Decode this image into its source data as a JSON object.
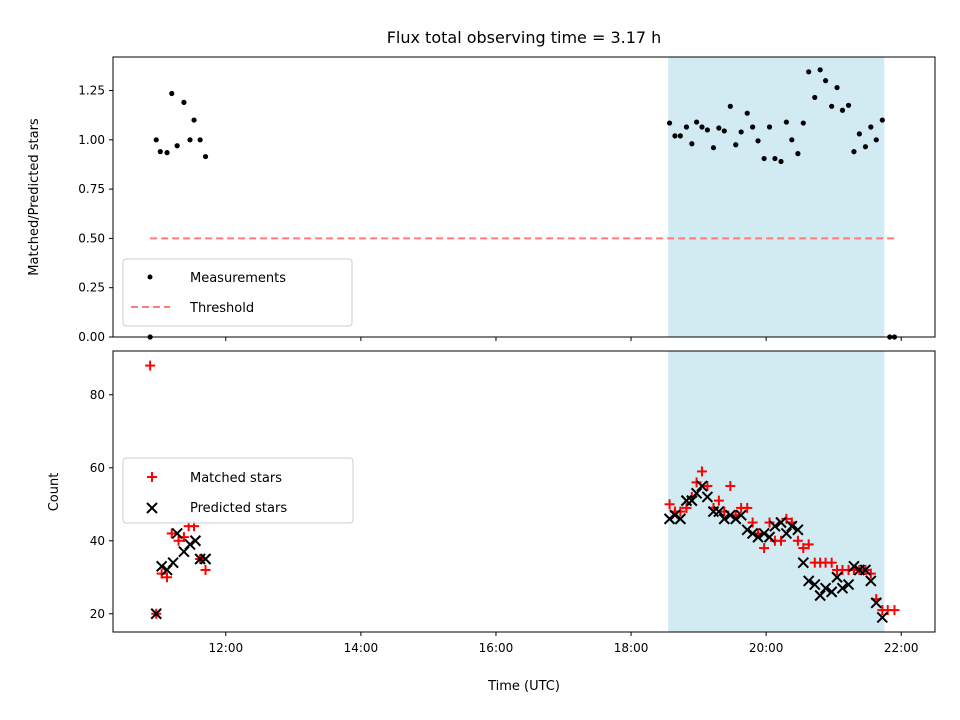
{
  "chart_data": [
    {
      "type": "scatter",
      "title": "Flux total observing time = 3.17 h",
      "xlabel": "",
      "ylabel": "Matched/Predicted stars",
      "xlim_hours": [
        10.33,
        22.5
      ],
      "ylim": [
        0,
        1.42
      ],
      "yticks": [
        0.0,
        0.25,
        0.5,
        0.75,
        1.0,
        1.25
      ],
      "ytick_labels": [
        "0.00",
        "0.25",
        "0.50",
        "0.75",
        "1.00",
        "1.25"
      ],
      "grid": false,
      "legend_placement": "lower-left",
      "shaded_span_hours": [
        18.55,
        21.75
      ],
      "shade_color": "#add8e6",
      "series": [
        {
          "name": "Measurements",
          "marker": "dot",
          "color": "#000000",
          "points": [
            [
              10.88,
              0.0
            ],
            [
              10.97,
              1.0
            ],
            [
              11.03,
              0.94
            ],
            [
              11.13,
              0.935
            ],
            [
              11.2,
              1.235
            ],
            [
              11.28,
              0.97
            ],
            [
              11.38,
              1.19
            ],
            [
              11.47,
              1.0
            ],
            [
              11.53,
              1.1
            ],
            [
              11.62,
              1.0
            ],
            [
              11.7,
              0.915
            ],
            [
              18.57,
              1.085
            ],
            [
              18.65,
              1.02
            ],
            [
              18.73,
              1.02
            ],
            [
              18.82,
              1.065
            ],
            [
              18.9,
              0.98
            ],
            [
              18.97,
              1.09
            ],
            [
              19.05,
              1.065
            ],
            [
              19.13,
              1.05
            ],
            [
              19.22,
              0.96
            ],
            [
              19.3,
              1.06
            ],
            [
              19.38,
              1.045
            ],
            [
              19.47,
              1.17
            ],
            [
              19.55,
              0.975
            ],
            [
              19.63,
              1.04
            ],
            [
              19.72,
              1.135
            ],
            [
              19.8,
              1.065
            ],
            [
              19.88,
              0.995
            ],
            [
              19.97,
              0.905
            ],
            [
              20.05,
              1.065
            ],
            [
              20.13,
              0.905
            ],
            [
              20.22,
              0.89
            ],
            [
              20.3,
              1.09
            ],
            [
              20.38,
              1.0
            ],
            [
              20.47,
              0.93
            ],
            [
              20.55,
              1.085
            ],
            [
              20.63,
              1.345
            ],
            [
              20.72,
              1.215
            ],
            [
              20.8,
              1.355
            ],
            [
              20.88,
              1.3
            ],
            [
              20.97,
              1.17
            ],
            [
              21.05,
              1.265
            ],
            [
              21.13,
              1.15
            ],
            [
              21.22,
              1.175
            ],
            [
              21.3,
              0.94
            ],
            [
              21.38,
              1.03
            ],
            [
              21.47,
              0.965
            ],
            [
              21.55,
              1.065
            ],
            [
              21.63,
              1.0
            ],
            [
              21.72,
              1.1
            ],
            [
              21.83,
              0.0
            ],
            [
              21.9,
              0.0
            ]
          ]
        },
        {
          "name": "Threshold",
          "style": "dashed-line",
          "color": "#ff7b7b",
          "x_range_hours": [
            10.88,
            21.9
          ],
          "y": 0.5
        }
      ]
    },
    {
      "type": "scatter",
      "title": "",
      "xlabel": "Time (UTC)",
      "ylabel": "Count",
      "xlim_hours": [
        10.33,
        22.5
      ],
      "ylim": [
        15,
        92
      ],
      "yticks": [
        20,
        40,
        60,
        80
      ],
      "ytick_labels": [
        "20",
        "40",
        "60",
        "80"
      ],
      "xticks_hours": [
        12,
        14,
        16,
        18,
        20,
        22
      ],
      "xtick_labels": [
        "12:00",
        "14:00",
        "16:00",
        "18:00",
        "20:00",
        "22:00"
      ],
      "grid": false,
      "legend_placement": "center-left",
      "shaded_span_hours": [
        18.55,
        21.75
      ],
      "shade_color": "#add8e6",
      "series": [
        {
          "name": "Matched stars",
          "marker": "plus",
          "color": "#ff0000",
          "points": [
            [
              10.88,
              88
            ],
            [
              10.97,
              20
            ],
            [
              11.05,
              31
            ],
            [
              11.13,
              30
            ],
            [
              11.2,
              42
            ],
            [
              11.3,
              40
            ],
            [
              11.38,
              41
            ],
            [
              11.45,
              44
            ],
            [
              11.53,
              44
            ],
            [
              11.62,
              35
            ],
            [
              11.7,
              32
            ],
            [
              18.57,
              50
            ],
            [
              18.65,
              48
            ],
            [
              18.73,
              48
            ],
            [
              18.82,
              49
            ],
            [
              18.9,
              52
            ],
            [
              18.97,
              56
            ],
            [
              19.05,
              59
            ],
            [
              19.13,
              55
            ],
            [
              19.22,
              49
            ],
            [
              19.3,
              51
            ],
            [
              19.38,
              48
            ],
            [
              19.47,
              55
            ],
            [
              19.55,
              47
            ],
            [
              19.63,
              49
            ],
            [
              19.72,
              49
            ],
            [
              19.8,
              45
            ],
            [
              19.88,
              42
            ],
            [
              19.97,
              38
            ],
            [
              20.05,
              45
            ],
            [
              20.13,
              40
            ],
            [
              20.22,
              40
            ],
            [
              20.3,
              46
            ],
            [
              20.38,
              45
            ],
            [
              20.47,
              40
            ],
            [
              20.55,
              38
            ],
            [
              20.63,
              39
            ],
            [
              20.72,
              34
            ],
            [
              20.8,
              34
            ],
            [
              20.88,
              34
            ],
            [
              20.97,
              34
            ],
            [
              21.05,
              32
            ],
            [
              21.13,
              32
            ],
            [
              21.22,
              32
            ],
            [
              21.3,
              32
            ],
            [
              21.38,
              32
            ],
            [
              21.47,
              32
            ],
            [
              21.55,
              31
            ],
            [
              21.63,
              24
            ],
            [
              21.72,
              21
            ],
            [
              21.8,
              21
            ],
            [
              21.9,
              21
            ]
          ]
        },
        {
          "name": "Predicted stars",
          "marker": "x",
          "color": "#000000",
          "points": [
            [
              10.97,
              20
            ],
            [
              11.05,
              33
            ],
            [
              11.13,
              32
            ],
            [
              11.22,
              34
            ],
            [
              11.28,
              42
            ],
            [
              11.38,
              37
            ],
            [
              11.47,
              39
            ],
            [
              11.55,
              40
            ],
            [
              11.62,
              35
            ],
            [
              11.7,
              35
            ],
            [
              18.57,
              46
            ],
            [
              18.65,
              47
            ],
            [
              18.73,
              46
            ],
            [
              18.82,
              51
            ],
            [
              18.9,
              51
            ],
            [
              18.97,
              53
            ],
            [
              19.05,
              55
            ],
            [
              19.13,
              52
            ],
            [
              19.22,
              48
            ],
            [
              19.3,
              48
            ],
            [
              19.38,
              46
            ],
            [
              19.47,
              47
            ],
            [
              19.55,
              46
            ],
            [
              19.63,
              47
            ],
            [
              19.72,
              43
            ],
            [
              19.8,
              42
            ],
            [
              19.88,
              41
            ],
            [
              19.97,
              42
            ],
            [
              20.05,
              41
            ],
            [
              20.13,
              44
            ],
            [
              20.22,
              45
            ],
            [
              20.3,
              42
            ],
            [
              20.38,
              44
            ],
            [
              20.47,
              43
            ],
            [
              20.55,
              34
            ],
            [
              20.63,
              29
            ],
            [
              20.72,
              28
            ],
            [
              20.8,
              25
            ],
            [
              20.88,
              27
            ],
            [
              20.97,
              26
            ],
            [
              21.05,
              30
            ],
            [
              21.13,
              27
            ],
            [
              21.22,
              28
            ],
            [
              21.3,
              33
            ],
            [
              21.38,
              32
            ],
            [
              21.47,
              32
            ],
            [
              21.55,
              29
            ],
            [
              21.63,
              23
            ],
            [
              21.72,
              19
            ]
          ]
        }
      ]
    }
  ]
}
